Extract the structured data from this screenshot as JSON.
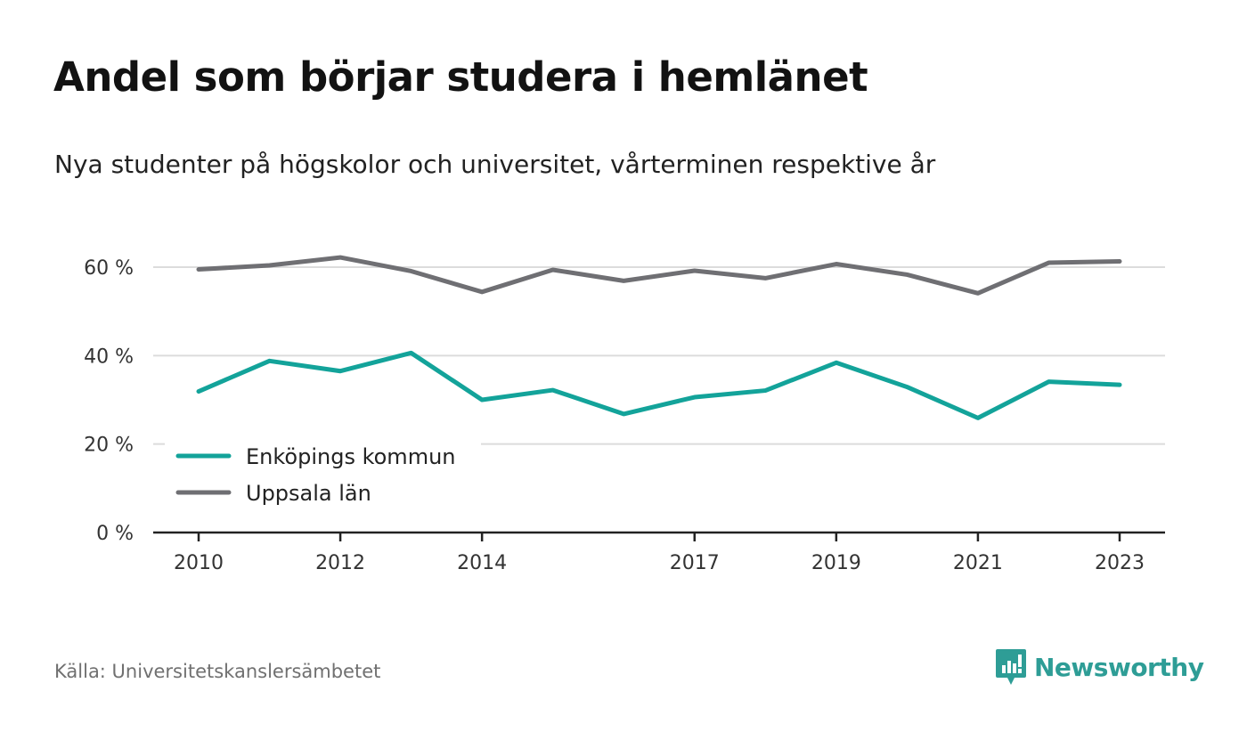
{
  "title": "Andel som börjar studera i hemlänet",
  "subtitle": "Nya studenter på högskolor och universitet, vårterminen respektive år",
  "source": "Källa: Universitetskanslersämbetet",
  "brand": {
    "name": "Newsworthy",
    "icon": "newsworthy-logo-icon",
    "color": "#2e9d96"
  },
  "chart_data": {
    "type": "line",
    "title": "Andel som börjar studera i hemlänet",
    "subtitle": "Nya studenter på högskolor och universitet, vårterminen respektive år",
    "x": [
      2010,
      2011,
      2012,
      2013,
      2014,
      2015,
      2016,
      2017,
      2018,
      2019,
      2020,
      2021,
      2022,
      2023
    ],
    "x_ticks": [
      2010,
      2012,
      2014,
      2017,
      2019,
      2021,
      2023
    ],
    "x_tick_labels": [
      "2010",
      "2012",
      "2014",
      "2017",
      "2019",
      "2021",
      "2023"
    ],
    "y_ticks": [
      0,
      20,
      40,
      60
    ],
    "y_tick_labels": [
      "0 %",
      "20 %",
      "40 %",
      "60 %"
    ],
    "ylim": [
      0,
      60
    ],
    "y_unit": "%",
    "grid": true,
    "legend_position": "bottom-left",
    "series": [
      {
        "name": "Enköpings kommun",
        "color": "#13a39a",
        "values": [
          31.9,
          38.8,
          36.5,
          40.6,
          30.0,
          32.2,
          26.8,
          30.6,
          32.1,
          38.4,
          32.9,
          25.9,
          34.1,
          33.4
        ]
      },
      {
        "name": "Uppsala län",
        "color": "#6f6f73",
        "values": [
          59.5,
          60.4,
          62.2,
          59.1,
          54.4,
          59.4,
          56.9,
          59.2,
          57.5,
          60.7,
          58.3,
          54.1,
          61.0,
          61.3
        ]
      }
    ]
  }
}
